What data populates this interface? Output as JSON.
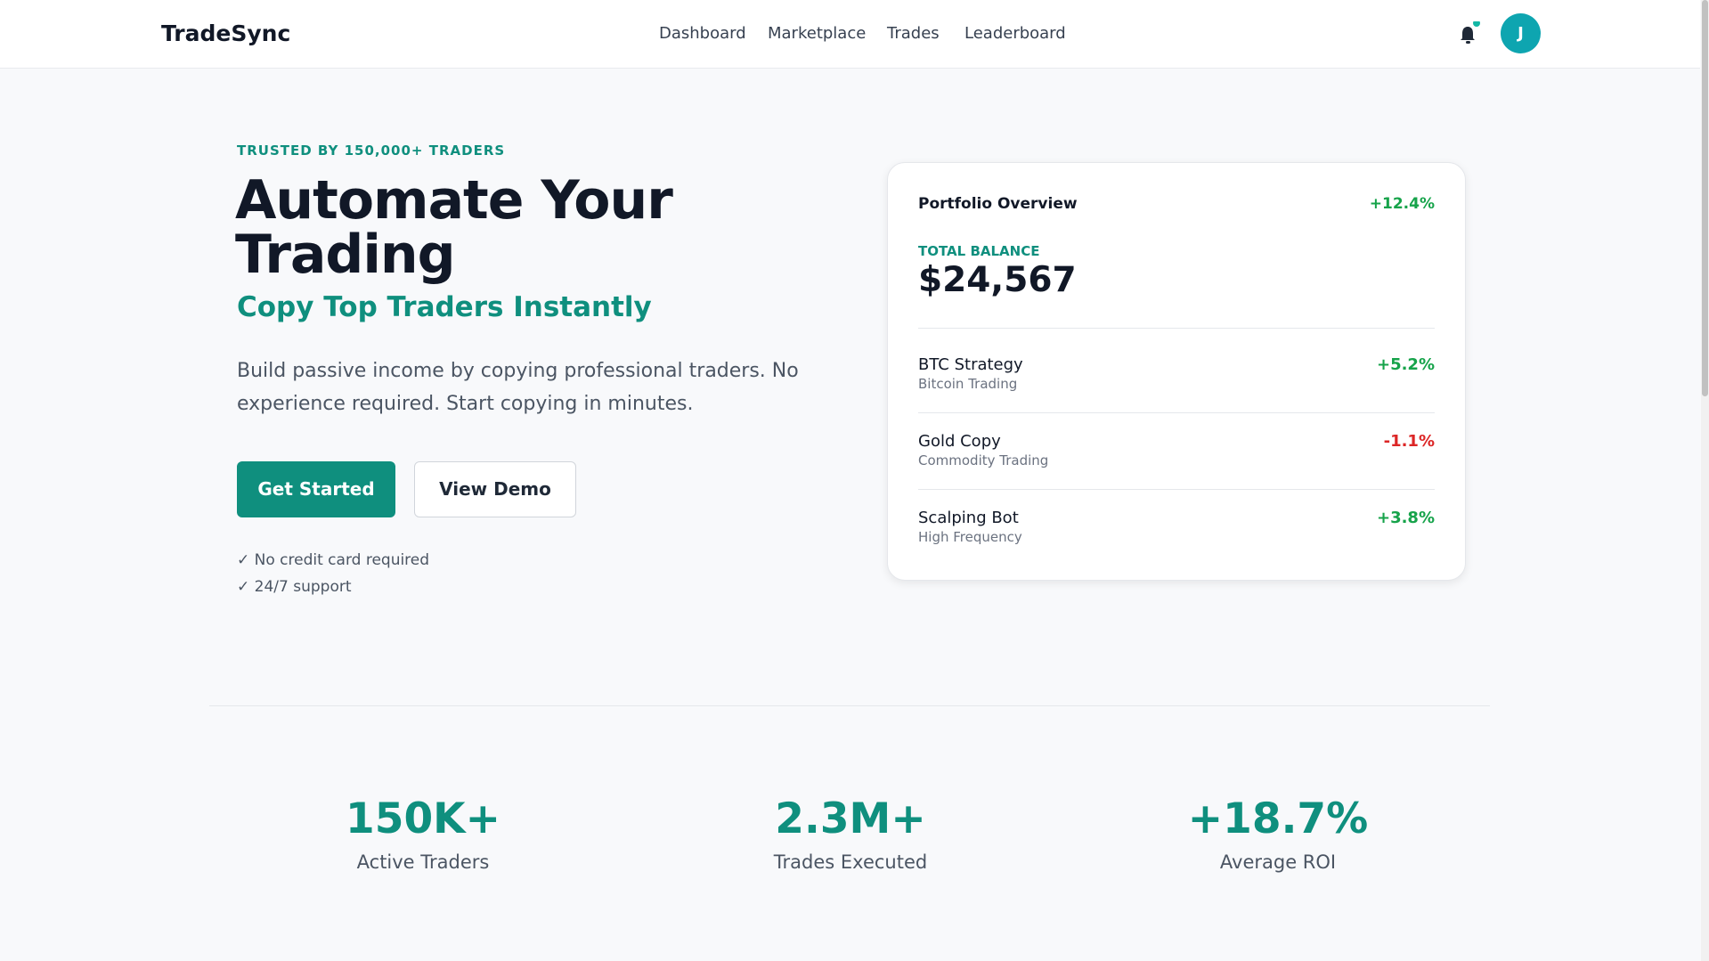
{
  "nav": {
    "logo": "TradeSync",
    "links": [
      "Dashboard",
      "Marketplace",
      "Trades",
      "Leaderboard"
    ],
    "avatar": "J"
  },
  "hero": {
    "eyebrow": "TRUSTED BY 150,000+ TRADERS",
    "title_lines": [
      "Automate Your",
      "Trading"
    ],
    "subtitle": "Copy Top Traders Instantly",
    "description_lines": [
      "Build passive income by copying professional traders. No",
      "experience required. Start copying in minutes."
    ],
    "primary_button": "Get Started",
    "secondary_button": "View Demo",
    "checks": [
      "✓ No credit card required",
      "✓ 24/7 support"
    ]
  },
  "portfolio": {
    "title": "Portfolio Overview",
    "change": "+12.4%",
    "balance_label": "TOTAL BALANCE",
    "balance": "$24,567",
    "rows": [
      {
        "name": "BTC Strategy",
        "type": "Bitcoin Trading",
        "change": "+5.2%"
      },
      {
        "name": "Gold Copy",
        "type": "Commodity Trading",
        "change": "-1.1%"
      },
      {
        "name": "Scalping Bot",
        "type": "High Frequency",
        "change": "+3.8%"
      }
    ]
  },
  "stats": [
    {
      "value": "150K+",
      "label": "Active Traders"
    },
    {
      "value": "2.3M+",
      "label": "Trades Executed"
    },
    {
      "value": "+18.7%",
      "label": "Average ROI"
    }
  ]
}
